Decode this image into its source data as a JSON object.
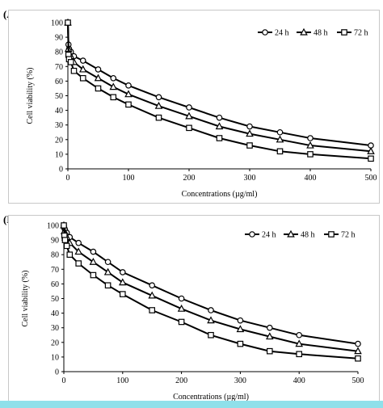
{
  "colors": {
    "bottom_bar": "#8fe0ea",
    "series": "#000000",
    "axis": "#000000"
  },
  "chart_data": [
    {
      "panel_label": "(A)",
      "type": "line",
      "xlabel": "Concentrations (µg/ml)",
      "ylabel": "Cell viability (%)",
      "xlim": [
        0,
        500
      ],
      "ylim": [
        0,
        100
      ],
      "xticks": [
        0,
        100,
        200,
        300,
        400,
        500
      ],
      "yticks": [
        0,
        10,
        20,
        30,
        40,
        50,
        60,
        70,
        80,
        90,
        100
      ],
      "grid": false,
      "legend_position": "top-right",
      "x": [
        0,
        1,
        2,
        5,
        10,
        25,
        50,
        75,
        100,
        150,
        200,
        250,
        300,
        350,
        400,
        500
      ],
      "series": [
        {
          "name": "24 h",
          "marker": "circle",
          "values": [
            100,
            85,
            82,
            80,
            77,
            74,
            68,
            62,
            57,
            49,
            42,
            35,
            29,
            25,
            21,
            16
          ]
        },
        {
          "name": "48 h",
          "marker": "triangle",
          "values": [
            100,
            82,
            79,
            77,
            73,
            68,
            62,
            56,
            51,
            43,
            36,
            29,
            24,
            20,
            16,
            12
          ]
        },
        {
          "name": "72 h",
          "marker": "square",
          "values": [
            100,
            78,
            75,
            73,
            67,
            62,
            55,
            49,
            44,
            35,
            28,
            21,
            16,
            12,
            10,
            7
          ]
        }
      ]
    },
    {
      "panel_label": "(B)",
      "type": "line",
      "xlabel": "Concentrations (µg/ml)",
      "ylabel": "Cell viability (%)",
      "xlim": [
        0,
        500
      ],
      "ylim": [
        0,
        100
      ],
      "xticks": [
        0,
        100,
        200,
        300,
        400,
        500
      ],
      "yticks": [
        0,
        10,
        20,
        30,
        40,
        50,
        60,
        70,
        80,
        90,
        100
      ],
      "grid": false,
      "legend_position": "top-right",
      "x": [
        0,
        1,
        2,
        5,
        10,
        25,
        50,
        75,
        100,
        150,
        200,
        250,
        300,
        350,
        400,
        500
      ],
      "series": [
        {
          "name": "24 h",
          "marker": "circle",
          "values": [
            100,
            98,
            97,
            95,
            92,
            88,
            82,
            75,
            68,
            59,
            50,
            42,
            35,
            30,
            25,
            19
          ]
        },
        {
          "name": "48 h",
          "marker": "triangle",
          "values": [
            100,
            96,
            94,
            92,
            88,
            82,
            75,
            68,
            61,
            52,
            43,
            35,
            29,
            24,
            19,
            14
          ]
        },
        {
          "name": "72 h",
          "marker": "square",
          "values": [
            100,
            93,
            90,
            86,
            80,
            74,
            66,
            59,
            53,
            42,
            34,
            25,
            19,
            14,
            12,
            9
          ]
        }
      ]
    }
  ]
}
